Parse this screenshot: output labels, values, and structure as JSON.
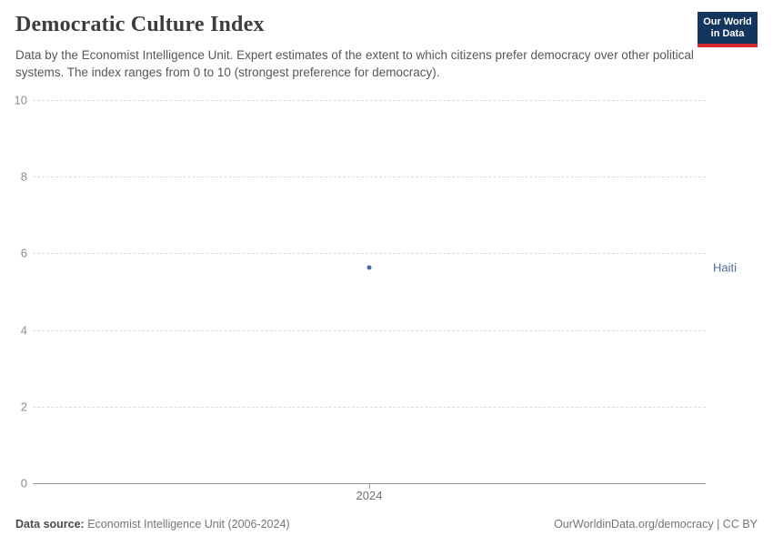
{
  "header": {
    "title": "Democratic Culture Index",
    "subtitle": "Data by the Economist Intelligence Unit. Expert estimates of the extent to which citizens prefer democracy over other political systems. The index ranges from 0 to 10 (strongest preference for democracy).",
    "logo": {
      "line1": "Our World",
      "line2": "in Data"
    }
  },
  "chart_data": {
    "type": "scatter",
    "title": "Democratic Culture Index",
    "x": [
      2024
    ],
    "categories": [
      2024
    ],
    "series": [
      {
        "name": "Haiti",
        "values": [
          5.63
        ],
        "color": "#4c6a9c"
      }
    ],
    "xlabel": "",
    "ylabel": "",
    "ylim": [
      0,
      10
    ],
    "yticks": [
      0,
      2,
      4,
      6,
      8,
      10
    ],
    "grid": "horizontal-dashed",
    "legend_position": "right-entity-label"
  },
  "colors": {
    "series_blue": "#4c6a9c",
    "logo_bg": "#13355e",
    "logo_red": "#d7262c"
  },
  "footer": {
    "source_label": "Data source:",
    "source_value": "Economist Intelligence Unit (2006-2024)",
    "attribution": "OurWorldinData.org/democracy | CC BY"
  }
}
